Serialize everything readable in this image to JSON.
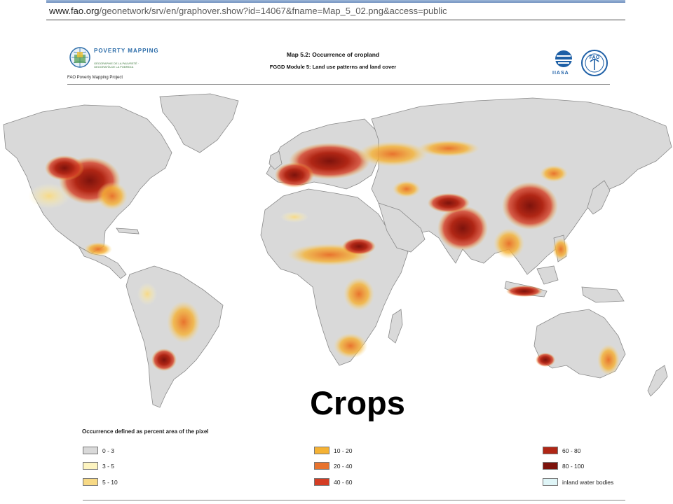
{
  "url": {
    "domain": "www.fao.org",
    "path": "/geonetwork/srv/en/graphover.show?id=14067&fname=Map_5_02.png&access=public"
  },
  "header": {
    "logo_text": "POVERTY MAPPING",
    "logo_subtext": "GÉOGRAPHIE DE LA PAUVRETÉ · GEOGRAFÍA DE LA POBREZA",
    "project_caption": "FAO Poverty Mapping Project",
    "title": "Map 5.2: Occurrence of cropland",
    "subtitle": "FGGD Module 5: Land use patterns and land cover",
    "partner1": "IIASA",
    "partner2": "FAO"
  },
  "overlay_text": "Crops",
  "legend": {
    "title": "Occurrence defined as percent area of the pixel",
    "items": [
      {
        "label": "0 - 3",
        "color": "#d9d9d9"
      },
      {
        "label": "3 - 5",
        "color": "#fdf4c0"
      },
      {
        "label": "5 - 10",
        "color": "#f7d985"
      },
      {
        "label": "10 - 20",
        "color": "#f5b234"
      },
      {
        "label": "20 - 40",
        "color": "#e8732e"
      },
      {
        "label": "40 - 60",
        "color": "#d43d24"
      },
      {
        "label": "60 - 80",
        "color": "#b02615"
      },
      {
        "label": "80 - 100",
        "color": "#7d130c"
      },
      {
        "label": "inland water bodies",
        "color": "#dff5f7"
      }
    ]
  },
  "colors": {
    "land": "#d9d9d9",
    "ocean": "#ffffff",
    "border": "#8a8a8a",
    "accent_blue": "#1d5fa6"
  }
}
